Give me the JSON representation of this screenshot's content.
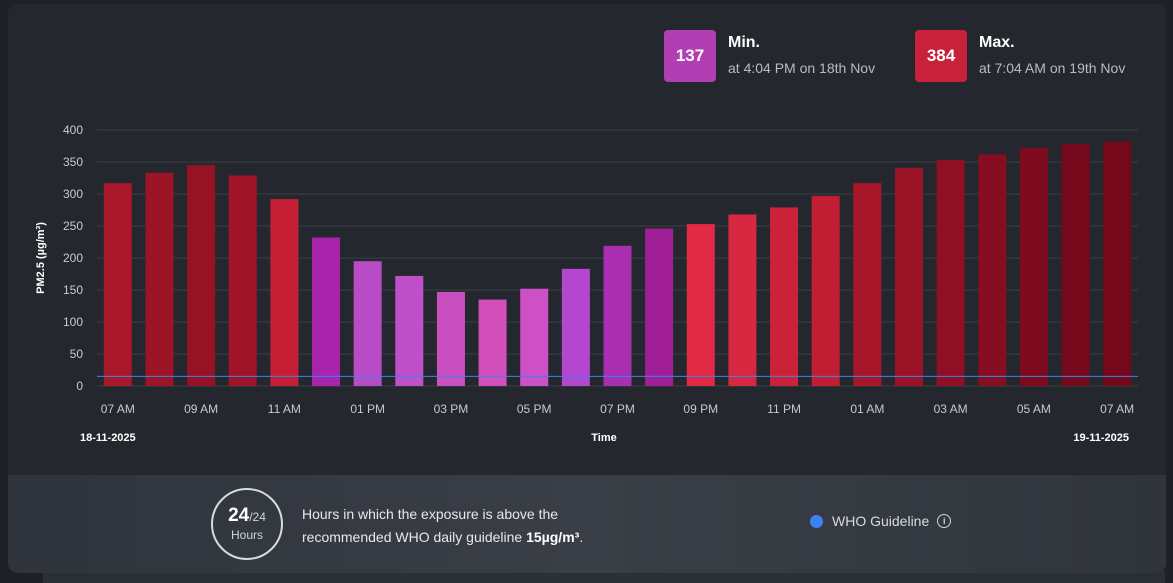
{
  "min": {
    "value": "137",
    "title": "Min.",
    "subtitle": "at 4:04 PM on 18th Nov",
    "color": "#b13fb3"
  },
  "max": {
    "value": "384",
    "title": "Max.",
    "subtitle": "at 7:04 AM on 19th Nov",
    "color": "#c8213a"
  },
  "chart_data": {
    "type": "bar",
    "ylabel": "PM2.5 (µg/m³)",
    "xlabel": "Time",
    "ylim": [
      0,
      400
    ],
    "yticks": [
      0,
      50,
      100,
      150,
      200,
      250,
      300,
      350,
      400
    ],
    "start_date": "18-11-2025",
    "end_date": "19-11-2025",
    "x_tick_labels": [
      "07 AM",
      "09 AM",
      "11 AM",
      "01 PM",
      "03 PM",
      "05 PM",
      "07 PM",
      "09 PM",
      "11 PM",
      "01 AM",
      "03 AM",
      "05 AM",
      "07 AM"
    ],
    "values": [
      317,
      333,
      345,
      329,
      292,
      232,
      195,
      172,
      147,
      135,
      152,
      183,
      219,
      246,
      253,
      268,
      279,
      297,
      317,
      341,
      353,
      362,
      372,
      378,
      382
    ],
    "colors": [
      "#a8172a",
      "#9d1427",
      "#961225",
      "#9f1428",
      "#c61f35",
      "#a824ad",
      "#b94bc7",
      "#bf50c9",
      "#c94fc0",
      "#d24fbb",
      "#ce50c6",
      "#b546cf",
      "#a92fb0",
      "#a11f96",
      "#e22a45",
      "#d82740",
      "#cc2239",
      "#c11e34",
      "#a81729",
      "#9b1326",
      "#901023",
      "#870d20",
      "#7e0b1d",
      "#76091b",
      "#75091b"
    ],
    "guideline": {
      "value": 15,
      "color": "#3b82f6",
      "name": "WHO Guideline"
    }
  },
  "footer": {
    "hours_above": "24",
    "hours_total": "/24",
    "hours_label": "Hours",
    "text_main": "Hours in which the exposure is above the recommended WHO daily guideline ",
    "text_bold": "15µg/m³",
    "text_end": ".",
    "legend_label": "WHO Guideline"
  }
}
